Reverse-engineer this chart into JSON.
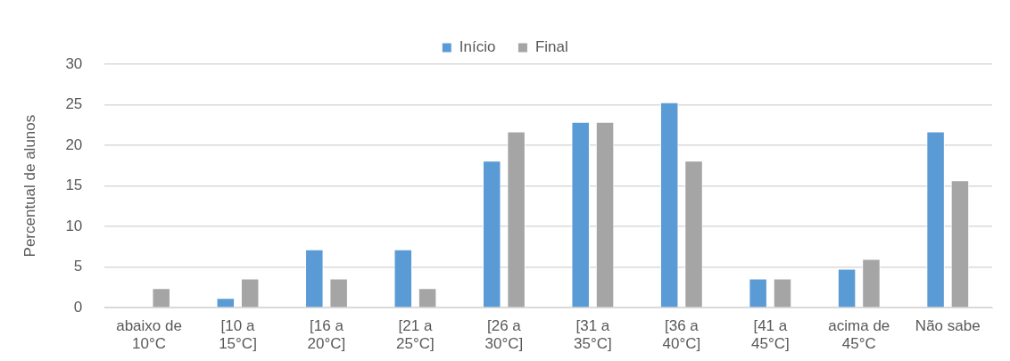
{
  "chart_data": {
    "type": "bar",
    "ylabel": "Percentual de alunos",
    "categories": [
      [
        "abaixo de",
        "10°C"
      ],
      [
        "[10 a",
        "15°C]"
      ],
      [
        "[16 a",
        "20°C]"
      ],
      [
        "[21 a",
        "25°C]"
      ],
      [
        "[26 a",
        "30°C]"
      ],
      [
        "[31 a",
        "35°C]"
      ],
      [
        "[36 a",
        "40°C]"
      ],
      [
        "[41 a",
        "45°C]"
      ],
      [
        "acima de",
        "45°C"
      ],
      [
        "Não sabe"
      ]
    ],
    "series": [
      {
        "name": "Início",
        "color": "#5b9bd5",
        "values": [
          0,
          1.2,
          7.2,
          7.2,
          18.1,
          22.9,
          25.3,
          3.6,
          4.8,
          21.7
        ]
      },
      {
        "name": "Final",
        "color": "#a5a5a5",
        "values": [
          2.4,
          3.6,
          3.6,
          2.4,
          21.7,
          22.9,
          18.1,
          3.6,
          6.0,
          15.7
        ]
      }
    ],
    "ylim": [
      0,
      30
    ],
    "yticks": [
      0,
      5,
      10,
      15,
      20,
      25,
      30
    ],
    "grid": "y",
    "legend": "top"
  }
}
